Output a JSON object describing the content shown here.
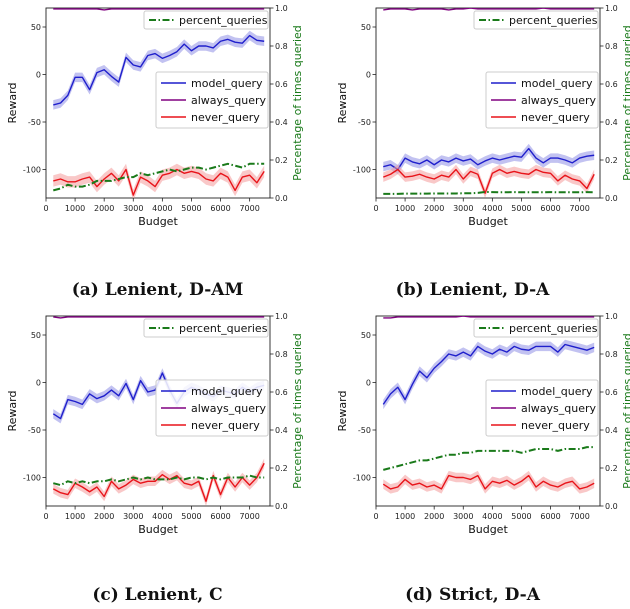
{
  "captions": [
    "(a) Lenient, D-AM",
    "(b) Lenient, D-A",
    "(c) Lenient, C",
    "(d) Strict, D-A"
  ],
  "colors": {
    "model_query": "#1f1fcc",
    "model_band": "#8f8fe6",
    "always_query": "#800080",
    "never_query": "#e8141a",
    "never_band": "#f49a9a",
    "percent_queries": "#1a7a1a"
  },
  "chart_data": [
    {
      "type": "line",
      "xlabel": "Budget",
      "ylabel": "Reward",
      "y2label": "Percentage of times queried",
      "xlim": [
        0,
        7700
      ],
      "ylim": [
        -130,
        70
      ],
      "y2lim": [
        0,
        1.0
      ],
      "xticks": [
        "0",
        "1000",
        "2000",
        "3000",
        "4000",
        "5000",
        "6000",
        "7000"
      ],
      "yticks": [
        "-100",
        "-50",
        "0",
        "50"
      ],
      "y2ticks": [
        "0.0",
        "0.2",
        "0.4",
        "0.6",
        "0.8",
        "1.0"
      ],
      "legend": [
        "model_query",
        "always_query",
        "never_query"
      ],
      "legend2": [
        "percent_queries"
      ],
      "x": [
        250,
        500,
        750,
        1000,
        1250,
        1500,
        1750,
        2000,
        2250,
        2500,
        2750,
        3000,
        3250,
        3500,
        3750,
        4000,
        4250,
        4500,
        4750,
        5000,
        5250,
        5500,
        5750,
        6000,
        6250,
        6500,
        6750,
        7000,
        7250,
        7500
      ],
      "series": [
        {
          "name": "model_query",
          "values": [
            -32,
            -30,
            -22,
            -3,
            -3,
            -16,
            2,
            5,
            -2,
            -8,
            18,
            10,
            8,
            20,
            22,
            17,
            20,
            24,
            32,
            25,
            30,
            30,
            28,
            35,
            37,
            34,
            33,
            41,
            36,
            35
          ],
          "band": 5
        },
        {
          "name": "always_query",
          "values": [
            69,
            69,
            69,
            69,
            69,
            69,
            69,
            68,
            69,
            69,
            69,
            69,
            69,
            69,
            69,
            69,
            69,
            69,
            69,
            69,
            69,
            69,
            69,
            69,
            69,
            69,
            69,
            69,
            69,
            69
          ]
        },
        {
          "name": "never_query",
          "values": [
            -112,
            -110,
            -113,
            -113,
            -110,
            -108,
            -118,
            -110,
            -104,
            -112,
            -100,
            -127,
            -108,
            -112,
            -118,
            -106,
            -104,
            -100,
            -104,
            -102,
            -104,
            -110,
            -112,
            -104,
            -108,
            -122,
            -108,
            -106,
            -114,
            -102
          ],
          "band": 6
        },
        {
          "name": "percent_queries",
          "axis": "y2",
          "values": [
            0.04,
            0.05,
            0.07,
            0.06,
            0.06,
            0.07,
            0.09,
            0.09,
            0.09,
            0.1,
            0.11,
            0.11,
            0.13,
            0.12,
            0.13,
            0.14,
            0.15,
            0.14,
            0.15,
            0.16,
            0.16,
            0.15,
            0.16,
            0.17,
            0.18,
            0.17,
            0.16,
            0.18,
            0.18,
            0.18
          ]
        }
      ]
    },
    {
      "type": "line",
      "xlabel": "Budget",
      "ylabel": "Reward",
      "y2label": "Percentage of times queried",
      "xlim": [
        0,
        7700
      ],
      "ylim": [
        -130,
        70
      ],
      "y2lim": [
        0,
        1.0
      ],
      "xticks": [
        "0",
        "1000",
        "2000",
        "3000",
        "4000",
        "5000",
        "6000",
        "7000"
      ],
      "yticks": [
        "-100",
        "-50",
        "0",
        "50"
      ],
      "y2ticks": [
        "0.0",
        "0.2",
        "0.4",
        "0.6",
        "0.8",
        "1.0"
      ],
      "legend": [
        "model_query",
        "always_query",
        "never_query"
      ],
      "legend2": [
        "percent_queries"
      ],
      "x": [
        250,
        500,
        750,
        1000,
        1250,
        1500,
        1750,
        2000,
        2250,
        2500,
        2750,
        3000,
        3250,
        3500,
        3750,
        4000,
        4250,
        4500,
        4750,
        5000,
        5250,
        5500,
        5750,
        6000,
        6250,
        6500,
        6750,
        7000,
        7250,
        7500
      ],
      "series": [
        {
          "name": "model_query",
          "values": [
            -97,
            -95,
            -100,
            -88,
            -92,
            -94,
            -90,
            -95,
            -90,
            -92,
            -88,
            -91,
            -89,
            -95,
            -91,
            -88,
            -90,
            -88,
            -86,
            -87,
            -78,
            -88,
            -93,
            -88,
            -88,
            -90,
            -93,
            -88,
            -86,
            -85
          ],
          "band": 5
        },
        {
          "name": "always_query",
          "values": [
            68,
            69,
            69,
            69,
            68,
            69,
            69,
            69,
            69,
            68,
            69,
            69,
            70,
            69,
            69,
            69,
            69,
            69,
            69,
            69,
            69,
            69,
            70,
            69,
            69,
            69,
            69,
            69,
            69,
            69
          ]
        },
        {
          "name": "never_query",
          "values": [
            -108,
            -105,
            -100,
            -108,
            -107,
            -105,
            -108,
            -110,
            -106,
            -108,
            -100,
            -110,
            -102,
            -105,
            -125,
            -104,
            -100,
            -104,
            -102,
            -104,
            -105,
            -100,
            -103,
            -104,
            -112,
            -106,
            -110,
            -112,
            -120,
            -105
          ],
          "band": 5
        },
        {
          "name": "percent_queries",
          "axis": "y2",
          "values": [
            0.022,
            0.022,
            0.022,
            0.023,
            0.023,
            0.023,
            0.023,
            0.024,
            0.024,
            0.024,
            0.024,
            0.025,
            0.025,
            0.027,
            0.032,
            0.031,
            0.03,
            0.03,
            0.031,
            0.03,
            0.03,
            0.03,
            0.03,
            0.031,
            0.03,
            0.03,
            0.03,
            0.03,
            0.031,
            0.03
          ]
        }
      ]
    },
    {
      "type": "line",
      "xlabel": "Budget",
      "ylabel": "Reward",
      "y2label": "Percentage of times queried",
      "xlim": [
        0,
        7700
      ],
      "ylim": [
        -130,
        70
      ],
      "y2lim": [
        0,
        1.0
      ],
      "xticks": [
        "0",
        "1000",
        "2000",
        "3000",
        "4000",
        "5000",
        "6000",
        "7000"
      ],
      "yticks": [
        "-100",
        "-50",
        "0",
        "50"
      ],
      "y2ticks": [
        "0.0",
        "0.2",
        "0.4",
        "0.6",
        "0.8",
        "1.0"
      ],
      "legend": [
        "model_query",
        "always_query",
        "never_query"
      ],
      "legend2": [
        "percent_queries"
      ],
      "x": [
        250,
        500,
        750,
        1000,
        1250,
        1500,
        1750,
        2000,
        2250,
        2500,
        2750,
        3000,
        3250,
        3500,
        3750,
        4000,
        4250,
        4500,
        4750,
        5000,
        5250,
        5500,
        5750,
        6000,
        6250,
        6500,
        6750,
        7000,
        7250,
        7500
      ],
      "series": [
        {
          "name": "model_query",
          "values": [
            -33,
            -38,
            -18,
            -20,
            -23,
            -12,
            -17,
            -14,
            -8,
            -14,
            -1,
            -18,
            2,
            -10,
            -8,
            10,
            -8,
            -22,
            -10,
            -5,
            -8,
            -12,
            -15,
            -8,
            -10,
            -12,
            -5,
            -10,
            -5,
            -3
          ],
          "band": 5
        },
        {
          "name": "always_query",
          "values": [
            69,
            68,
            69,
            69,
            69,
            69,
            69,
            69,
            69,
            69,
            69,
            69,
            69,
            69,
            69,
            69,
            69,
            69,
            69,
            69,
            69,
            69,
            69,
            69,
            69,
            69,
            69,
            69,
            69,
            69
          ]
        },
        {
          "name": "never_query",
          "values": [
            -112,
            -116,
            -118,
            -106,
            -110,
            -115,
            -110,
            -120,
            -104,
            -112,
            -108,
            -102,
            -106,
            -104,
            -104,
            -97,
            -102,
            -98,
            -106,
            -108,
            -104,
            -125,
            -98,
            -118,
            -100,
            -110,
            -100,
            -108,
            -100,
            -85
          ],
          "band": 5
        },
        {
          "name": "percent_queries",
          "axis": "y2",
          "values": [
            0.12,
            0.11,
            0.13,
            0.12,
            0.13,
            0.12,
            0.13,
            0.13,
            0.14,
            0.13,
            0.14,
            0.15,
            0.14,
            0.15,
            0.14,
            0.14,
            0.14,
            0.15,
            0.14,
            0.15,
            0.15,
            0.14,
            0.15,
            0.14,
            0.15,
            0.15,
            0.15,
            0.16,
            0.15,
            0.15
          ]
        }
      ]
    },
    {
      "type": "line",
      "xlabel": "Budget",
      "ylabel": "Reward",
      "y2label": "Percentage of times queried",
      "xlim": [
        0,
        7700
      ],
      "ylim": [
        -130,
        70
      ],
      "y2lim": [
        0,
        1.0
      ],
      "xticks": [
        "0",
        "1000",
        "2000",
        "3000",
        "4000",
        "5000",
        "6000",
        "7000"
      ],
      "yticks": [
        "-100",
        "-50",
        "0",
        "50"
      ],
      "y2ticks": [
        "0.0",
        "0.2",
        "0.4",
        "0.6",
        "0.8",
        "1.0"
      ],
      "legend": [
        "model_query",
        "always_query",
        "never_query"
      ],
      "legend2": [
        "percent_queries"
      ],
      "x": [
        250,
        500,
        750,
        1000,
        1250,
        1500,
        1750,
        2000,
        2250,
        2500,
        2750,
        3000,
        3250,
        3500,
        3750,
        4000,
        4250,
        4500,
        4750,
        5000,
        5250,
        5500,
        5750,
        6000,
        6250,
        6500,
        6750,
        7000,
        7250,
        7500
      ],
      "series": [
        {
          "name": "model_query",
          "values": [
            -23,
            -12,
            -5,
            -18,
            -2,
            12,
            5,
            15,
            22,
            30,
            28,
            32,
            28,
            38,
            33,
            30,
            35,
            32,
            38,
            35,
            34,
            38,
            38,
            38,
            32,
            40,
            38,
            36,
            34,
            37
          ],
          "band": 5
        },
        {
          "name": "always_query",
          "values": [
            68,
            68,
            69,
            69,
            69,
            69,
            69,
            69,
            69,
            69,
            69,
            70,
            69,
            69,
            69,
            69,
            69,
            69,
            69,
            69,
            69,
            69,
            69,
            69,
            69,
            69,
            69,
            69,
            69,
            69
          ]
        },
        {
          "name": "never_query",
          "values": [
            -107,
            -112,
            -110,
            -102,
            -108,
            -106,
            -110,
            -108,
            -112,
            -98,
            -100,
            -100,
            -102,
            -98,
            -112,
            -104,
            -106,
            -103,
            -108,
            -104,
            -98,
            -110,
            -104,
            -108,
            -110,
            -106,
            -104,
            -112,
            -110,
            -106
          ],
          "band": 5
        },
        {
          "name": "percent_queries",
          "axis": "y2",
          "values": [
            0.19,
            0.2,
            0.21,
            0.22,
            0.23,
            0.24,
            0.24,
            0.25,
            0.26,
            0.27,
            0.27,
            0.28,
            0.28,
            0.29,
            0.29,
            0.29,
            0.29,
            0.29,
            0.29,
            0.28,
            0.29,
            0.3,
            0.3,
            0.3,
            0.29,
            0.3,
            0.3,
            0.3,
            0.31,
            0.31
          ]
        }
      ]
    }
  ]
}
